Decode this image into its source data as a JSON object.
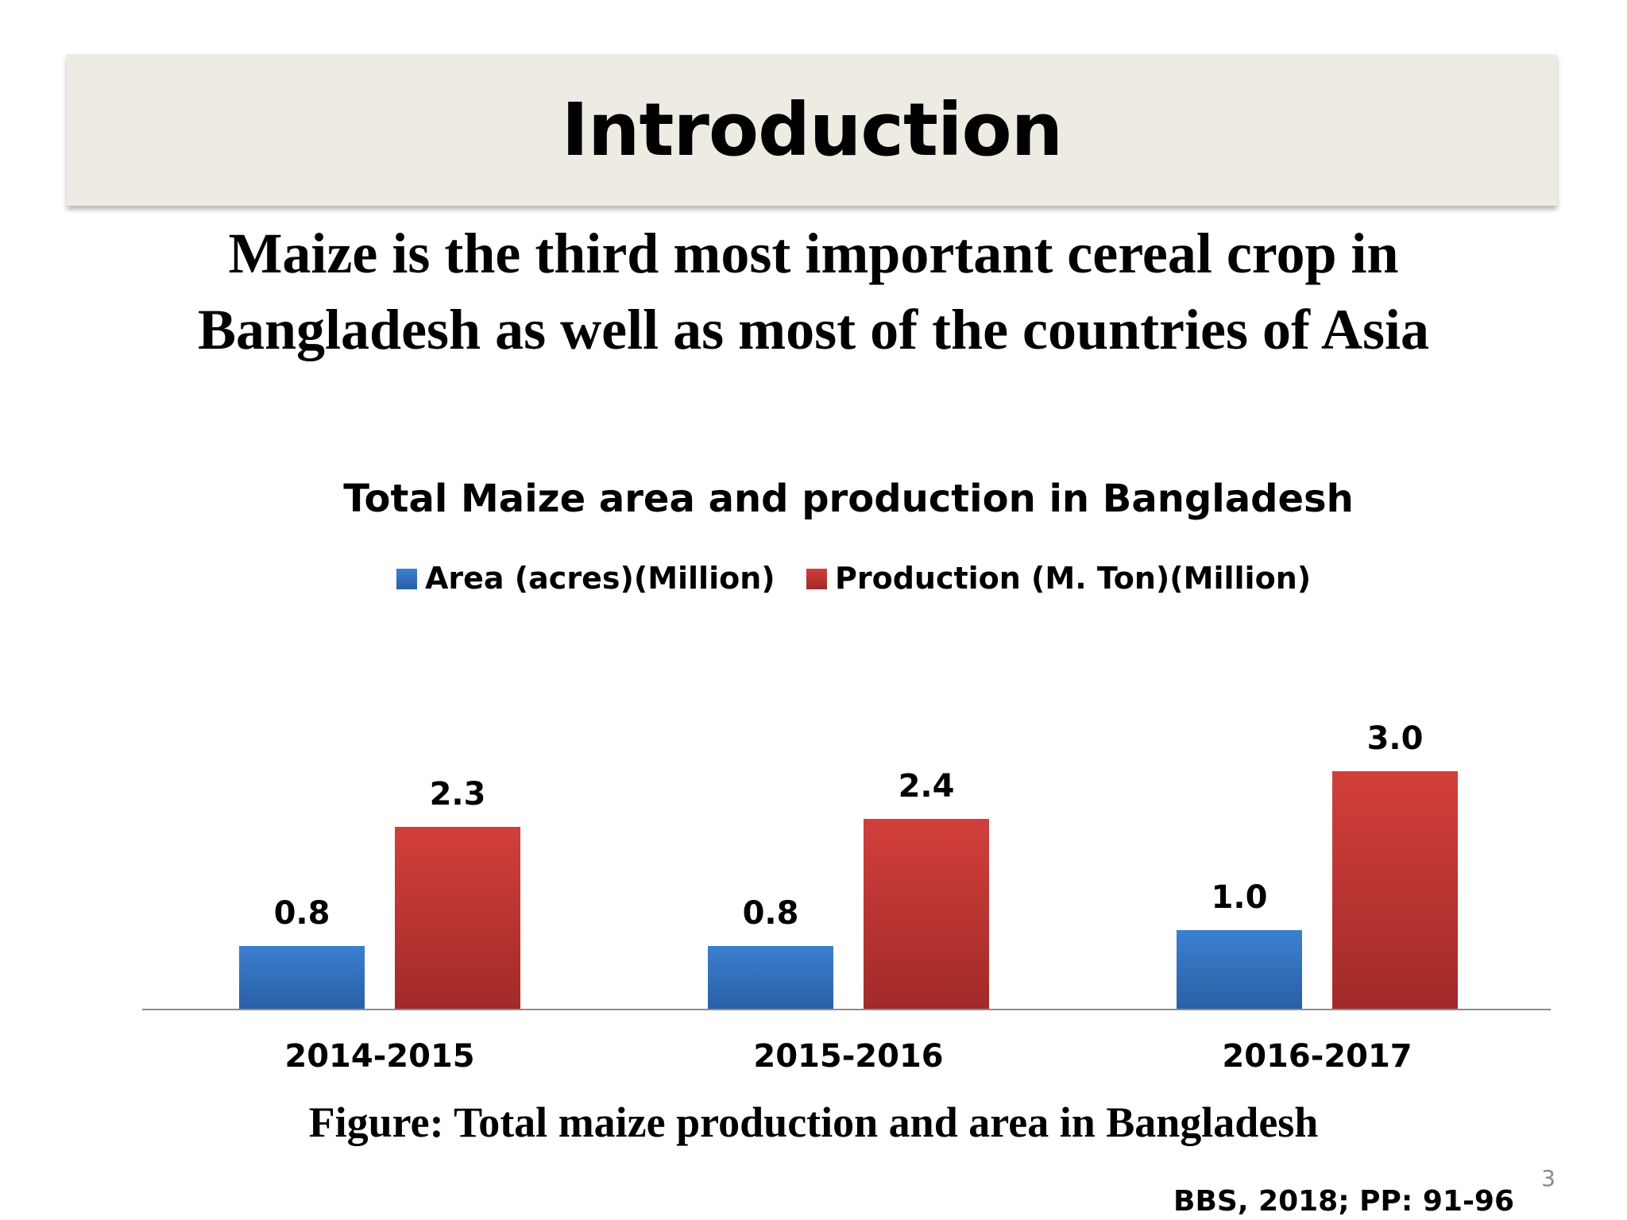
{
  "slide": {
    "title": "Introduction",
    "subtitle_lines": [
      "Maize is the third most important cereal crop in",
      "Bangladesh as well as most of the countries of Asia"
    ],
    "caption": "Figure: Total maize production and area in Bangladesh",
    "citation": "BBS, 2018; PP: 91-96",
    "page_number": "3"
  },
  "chart_data": {
    "type": "bar",
    "title": "Total Maize area and production in Bangladesh",
    "categories": [
      "2014-2015",
      "2015-2016",
      "2016-2017"
    ],
    "series": [
      {
        "name": "Area (acres)(Million)",
        "values": [
          0.8,
          0.8,
          1.0
        ],
        "labels": [
          "0.8",
          "0.8",
          "1.0"
        ],
        "color": "#3c7fd0",
        "color_dark": "#2a5fa6"
      },
      {
        "name": "Production (M. Ton)(Million)",
        "values": [
          2.3,
          2.4,
          3.0
        ],
        "labels": [
          "2.3",
          "2.4",
          "3.0"
        ],
        "color": "#d23f3b",
        "color_dark": "#a12a28"
      }
    ],
    "legend": "top",
    "data_labels": true,
    "grid": false,
    "y_axis_visible": false,
    "xlabel": "",
    "ylabel": ""
  }
}
